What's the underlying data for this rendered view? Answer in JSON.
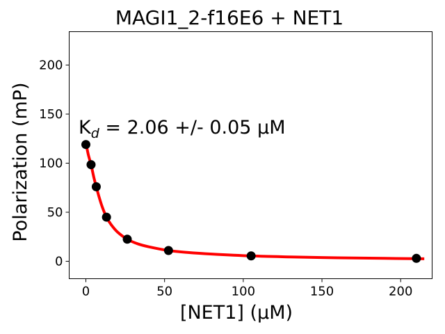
{
  "chart_data": {
    "type": "scatter",
    "title": "MAGI1_2-f16E6 + NET1",
    "xlabel": "[NET1] (μM)",
    "ylabel": "Polarization (mP)",
    "xlim": [
      -10.6,
      220
    ],
    "ylim": [
      -17.7,
      234
    ],
    "xticks": [
      0,
      50,
      100,
      150,
      200
    ],
    "yticks": [
      0,
      50,
      100,
      150,
      200
    ],
    "xtick_labels": [
      "0",
      "50",
      "100",
      "150",
      "200"
    ],
    "ytick_labels": [
      "0",
      "50",
      "100",
      "150",
      "200"
    ],
    "grid": false,
    "annotation": {
      "k": "K",
      "sub": "d",
      "rest": " = 2.06 +/- 0.05 ",
      "unit": "μM"
    },
    "series": [
      {
        "name": "data",
        "kind": "scatter",
        "color": "#000000",
        "x": [
          0,
          3.3,
          6.6,
          13.1,
          26.3,
          52.5,
          105,
          210
        ],
        "y": [
          119,
          98.5,
          76,
          45,
          22.5,
          11,
          5.5,
          3
        ]
      },
      {
        "name": "fit",
        "kind": "line",
        "color": "#ff0000",
        "x": [
          0,
          1.5,
          3.3,
          5,
          6.6,
          8.5,
          10.5,
          13.1,
          16,
          20,
          26.3,
          33,
          40,
          52.5,
          65,
          80,
          105,
          130,
          160,
          190,
          215
        ],
        "y": [
          121,
          109,
          98.5,
          86,
          76,
          65,
          55,
          45,
          37.5,
          30,
          22.5,
          17.8,
          14.8,
          11,
          9,
          7.4,
          5.5,
          4.5,
          3.6,
          3,
          2.6
        ]
      }
    ]
  }
}
